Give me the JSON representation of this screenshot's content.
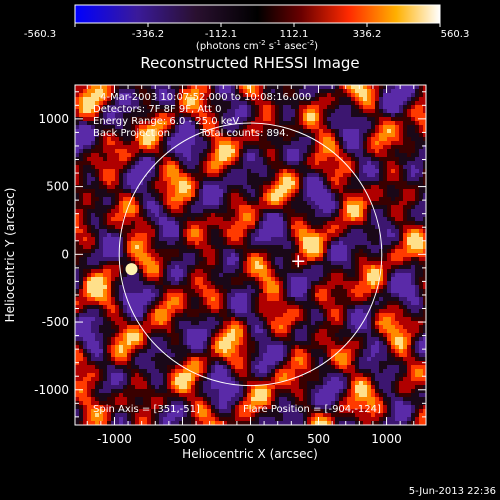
{
  "colorbar": {
    "ticks": [
      "-560.3",
      "-336.2",
      "-112.1",
      "112.1",
      "336.2",
      "560.3"
    ],
    "units_text": "(photons cm",
    "units_sup1": "-2",
    "units_mid1": " s",
    "units_sup2": "-1",
    "units_mid2": " asec",
    "units_sup3": "-2",
    "units_end": ")",
    "colors": [
      "#0000ff",
      "#5a1a8a",
      "#000000",
      "#7a0000",
      "#ff2a00",
      "#ffb000",
      "#ffffff"
    ]
  },
  "chart_data": {
    "type": "heatmap",
    "title": "Reconstructed RHESSI Image",
    "xlabel": "Heliocentric X (arcsec)",
    "ylabel": "Heliocentric Y (arcsec)",
    "xlim": [
      -1290,
      1290
    ],
    "ylim": [
      -1260,
      1250
    ],
    "xticks": [
      -1000,
      -500,
      0,
      500,
      1000
    ],
    "xtick_labels": [
      "-1000",
      "-500",
      "0",
      "500",
      "1000"
    ],
    "yticks": [
      -1000,
      -500,
      0,
      500,
      1000
    ],
    "ytick_labels": [
      "-1000",
      "-500",
      "0",
      "500",
      "1000"
    ],
    "solar_limb_radius": 965,
    "flare_position": [
      -904,
      -124
    ],
    "marker_position": [
      351,
      -51
    ]
  },
  "annotations": {
    "time_range": "4-Mar-2003 10:07:52.000 to 10:08:16.000",
    "detectors": "Detectors: 7F 8F 9F, Att 0",
    "energy": "Energy Range: 6.0 - 25.0 keV",
    "method": "Back Projection",
    "counts": "Total counts: 894.",
    "spin_axis": "Spin Axis = [351,-51]",
    "flare_pos_text": "Flare Position = [-904,-124]",
    "footer_date": "5-Jun-2013 22:36"
  }
}
